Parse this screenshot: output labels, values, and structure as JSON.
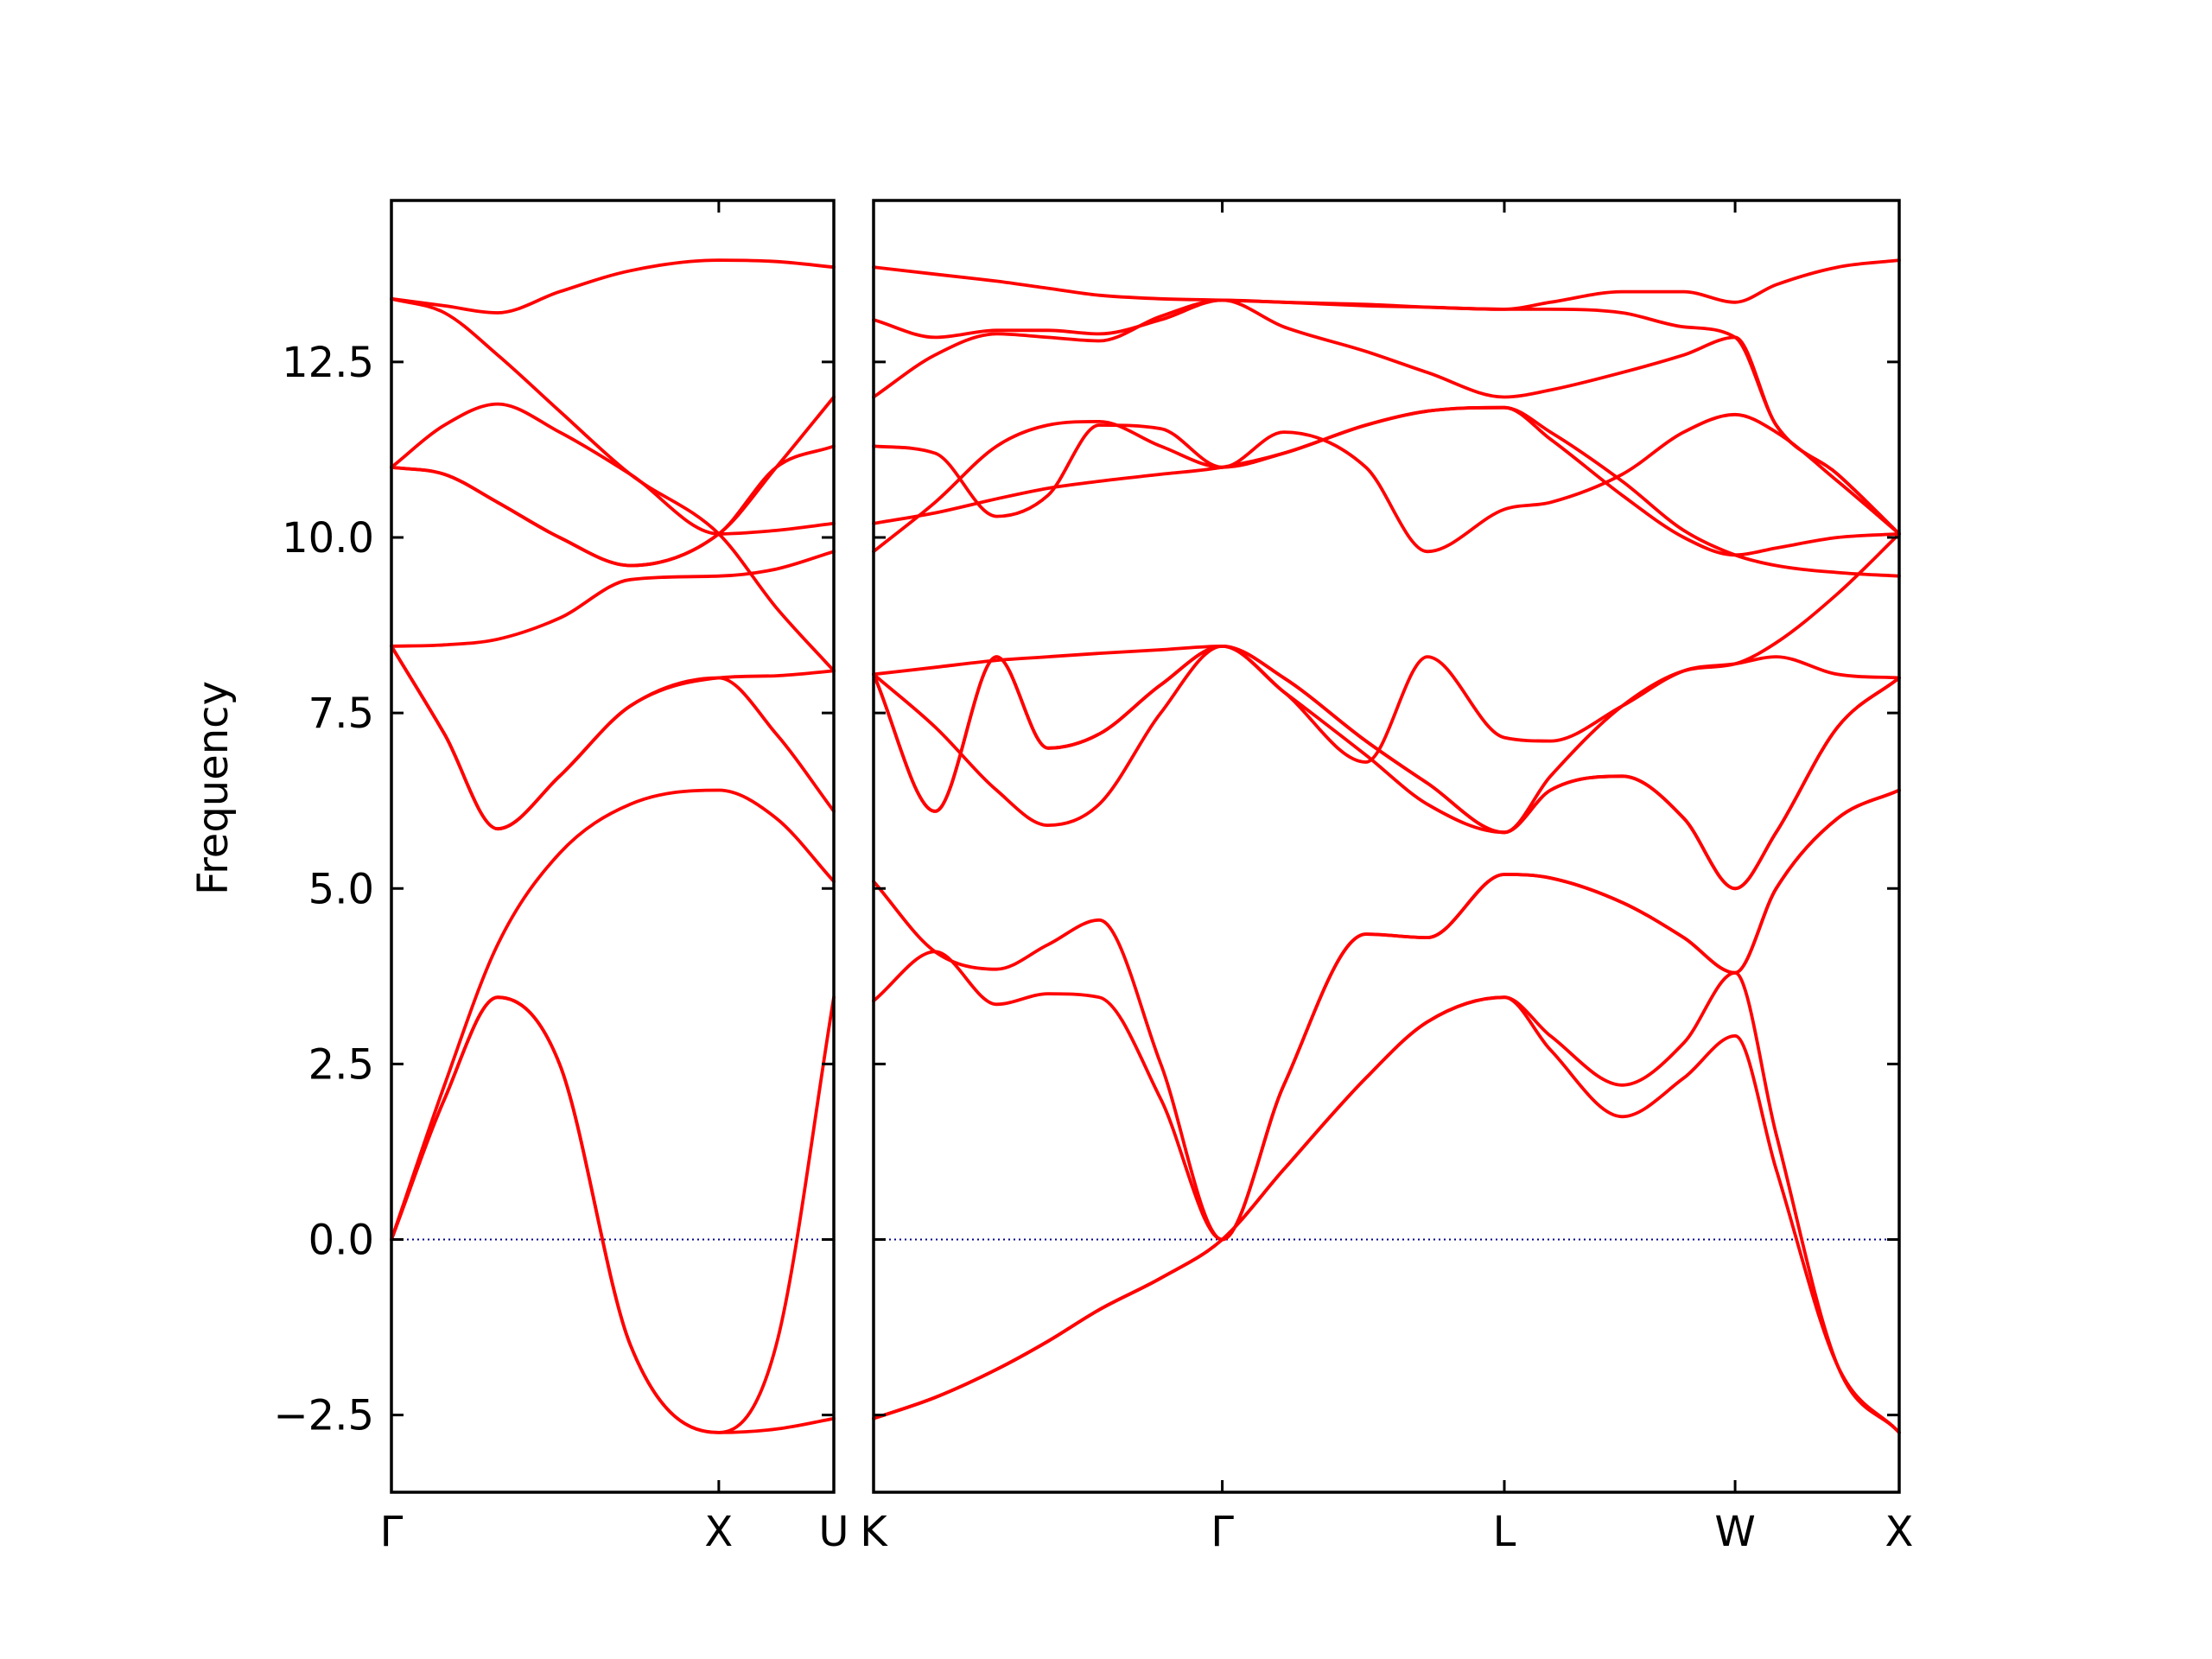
{
  "chart_data": {
    "type": "line",
    "ylabel": "Frequency",
    "ylim": [
      -3.6,
      14.8
    ],
    "yticks": [
      -2.5,
      0.0,
      2.5,
      5.0,
      7.5,
      10.0,
      12.5
    ],
    "ytick_labels": [
      "−2.5",
      "0.0",
      "2.5",
      "5.0",
      "7.5",
      "10.0",
      "12.5"
    ],
    "grid": false,
    "colors": {
      "bands": "#ff0000",
      "zero_line": "#00008b",
      "frame": "#000000"
    },
    "panels": [
      {
        "name": "Gamma-X-U",
        "xlim": [
          0,
          1.0
        ],
        "x_tick_positions": [
          0,
          0.74,
          1.0
        ],
        "x_tick_labels": [
          "Γ",
          "X",
          "U"
        ],
        "x": [
          0,
          0.12,
          0.24,
          0.38,
          0.54,
          0.74,
          0.87,
          1.0
        ],
        "series": [
          {
            "values": [
              13.4,
              13.3,
              13.2,
              13.5,
              13.8,
              13.95,
              13.93,
              13.85
            ]
          },
          {
            "values": [
              13.4,
              13.2,
              12.6,
              11.8,
              10.9,
              10.05,
              9.0,
              8.1
            ]
          },
          {
            "values": [
              11.0,
              11.6,
              11.9,
              11.5,
              10.9,
              10.05,
              10.1,
              10.2
            ]
          },
          {
            "values": [
              11.0,
              10.9,
              10.5,
              10.0,
              9.6,
              10.05,
              11.0,
              11.3
            ]
          },
          {
            "values": [
              11.0,
              10.9,
              10.5,
              10.0,
              9.6,
              10.05,
              11.0,
              12.0
            ]
          },
          {
            "values": [
              8.45,
              8.47,
              8.55,
              8.85,
              9.4,
              9.45,
              9.55,
              9.8
            ]
          },
          {
            "values": [
              8.45,
              7.2,
              5.85,
              6.6,
              7.6,
              8.0,
              8.03,
              8.1
            ]
          },
          {
            "values": [
              8.45,
              7.2,
              5.85,
              6.6,
              7.6,
              8.0,
              7.2,
              6.1
            ]
          },
          {
            "values": [
              0.0,
              2.2,
              4.2,
              5.5,
              6.2,
              6.4,
              6.0,
              5.1
            ]
          },
          {
            "values": [
              0.0,
              2.0,
              3.45,
              2.5,
              -1.5,
              -2.75,
              -2.7,
              -2.55
            ]
          },
          {
            "values": [
              0.0,
              2.0,
              3.45,
              2.5,
              -1.5,
              -2.75,
              -1.5,
              3.45
            ]
          }
        ]
      },
      {
        "name": "K-Gamma-L-W-X",
        "xlim": [
          0,
          1.0
        ],
        "x_tick_positions": [
          0,
          0.34,
          0.615,
          0.84,
          1.0
        ],
        "x_tick_labels": [
          "K",
          "Γ",
          "L",
          "W",
          "X"
        ],
        "x": [
          0,
          0.06,
          0.12,
          0.17,
          0.22,
          0.28,
          0.34,
          0.4,
          0.48,
          0.54,
          0.615,
          0.66,
          0.73,
          0.79,
          0.84,
          0.88,
          0.94,
          1.0
        ],
        "series": [
          {
            "values": [
              13.85,
              13.75,
              13.65,
              13.55,
              13.45,
              13.4,
              13.38,
              13.35,
              13.3,
              13.28,
              13.25,
              13.35,
              13.5,
              13.5,
              13.35,
              13.6,
              13.85,
              13.95
            ]
          },
          {
            "values": [
              13.1,
              12.85,
              12.95,
              12.95,
              12.9,
              13.1,
              13.38,
              13.0,
              12.65,
              12.35,
              12.0,
              12.1,
              12.35,
              12.6,
              12.85,
              11.6,
              10.9,
              10.05
            ]
          },
          {
            "values": [
              12.0,
              12.6,
              12.9,
              12.85,
              12.8,
              13.15,
              13.38,
              13.35,
              13.32,
              13.28,
              13.25,
              13.25,
              13.2,
              13.0,
              12.85,
              11.6,
              10.9,
              10.05
            ]
          },
          {
            "values": [
              11.3,
              11.2,
              10.3,
              10.6,
              11.6,
              11.55,
              11.0,
              11.5,
              11.0,
              9.8,
              10.4,
              10.5,
              10.9,
              11.5,
              11.75,
              11.5,
              10.8,
              10.05
            ]
          },
          {
            "values": [
              10.2,
              10.35,
              10.55,
              10.7,
              10.8,
              10.9,
              11.0,
              11.2,
              11.6,
              11.8,
              11.85,
              11.5,
              10.8,
              10.1,
              9.75,
              9.6,
              9.5,
              9.45
            ]
          },
          {
            "values": [
              9.8,
              10.5,
              11.3,
              11.6,
              11.65,
              11.3,
              11.0,
              11.2,
              11.6,
              11.8,
              11.85,
              11.4,
              10.6,
              10.0,
              9.75,
              9.85,
              10.0,
              10.05
            ]
          },
          {
            "values": [
              8.05,
              8.15,
              8.25,
              8.3,
              8.35,
              8.4,
              8.45,
              8.0,
              7.1,
              6.5,
              5.8,
              6.4,
              6.6,
              6.0,
              5.0,
              5.8,
              7.3,
              8.0
            ]
          },
          {
            "values": [
              8.05,
              7.3,
              6.4,
              5.9,
              6.2,
              7.5,
              8.45,
              8.0,
              7.1,
              6.5,
              5.8,
              6.4,
              6.6,
              6.0,
              5.0,
              5.8,
              7.3,
              8.0
            ]
          },
          {
            "values": [
              8.05,
              6.1,
              8.3,
              7.0,
              7.2,
              7.9,
              8.45,
              7.8,
              6.8,
              8.3,
              7.15,
              7.1,
              7.6,
              8.1,
              8.2,
              8.3,
              8.05,
              8.0
            ]
          },
          {
            "values": [
              8.05,
              6.1,
              8.3,
              7.0,
              7.2,
              7.9,
              8.45,
              7.8,
              6.9,
              6.2,
              5.8,
              6.6,
              7.6,
              8.1,
              8.2,
              8.5,
              9.2,
              10.05
            ]
          },
          {
            "values": [
              5.1,
              4.1,
              3.85,
              4.2,
              4.55,
              2.5,
              0.0,
              2.2,
              4.35,
              4.3,
              5.2,
              5.15,
              4.8,
              4.3,
              3.8,
              5.0,
              6.0,
              6.4
            ]
          },
          {
            "values": [
              3.4,
              4.1,
              3.35,
              3.5,
              3.45,
              2.0,
              0.0,
              2.2,
              4.35,
              4.3,
              5.2,
              5.15,
              4.8,
              4.3,
              3.8,
              5.0,
              6.0,
              6.4
            ]
          },
          {
            "values": [
              -2.55,
              -2.25,
              -1.85,
              -1.45,
              -1.0,
              -0.55,
              0.0,
              1.0,
              2.3,
              3.1,
              3.45,
              2.9,
              2.2,
              2.8,
              3.8,
              1.5,
              -1.8,
              -2.75
            ]
          },
          {
            "values": [
              -2.55,
              -2.25,
              -1.85,
              -1.45,
              -1.0,
              -0.55,
              0.0,
              1.0,
              2.3,
              3.1,
              3.45,
              2.7,
              1.75,
              2.3,
              2.9,
              1.0,
              -1.8,
              -2.75
            ]
          }
        ]
      }
    ]
  }
}
